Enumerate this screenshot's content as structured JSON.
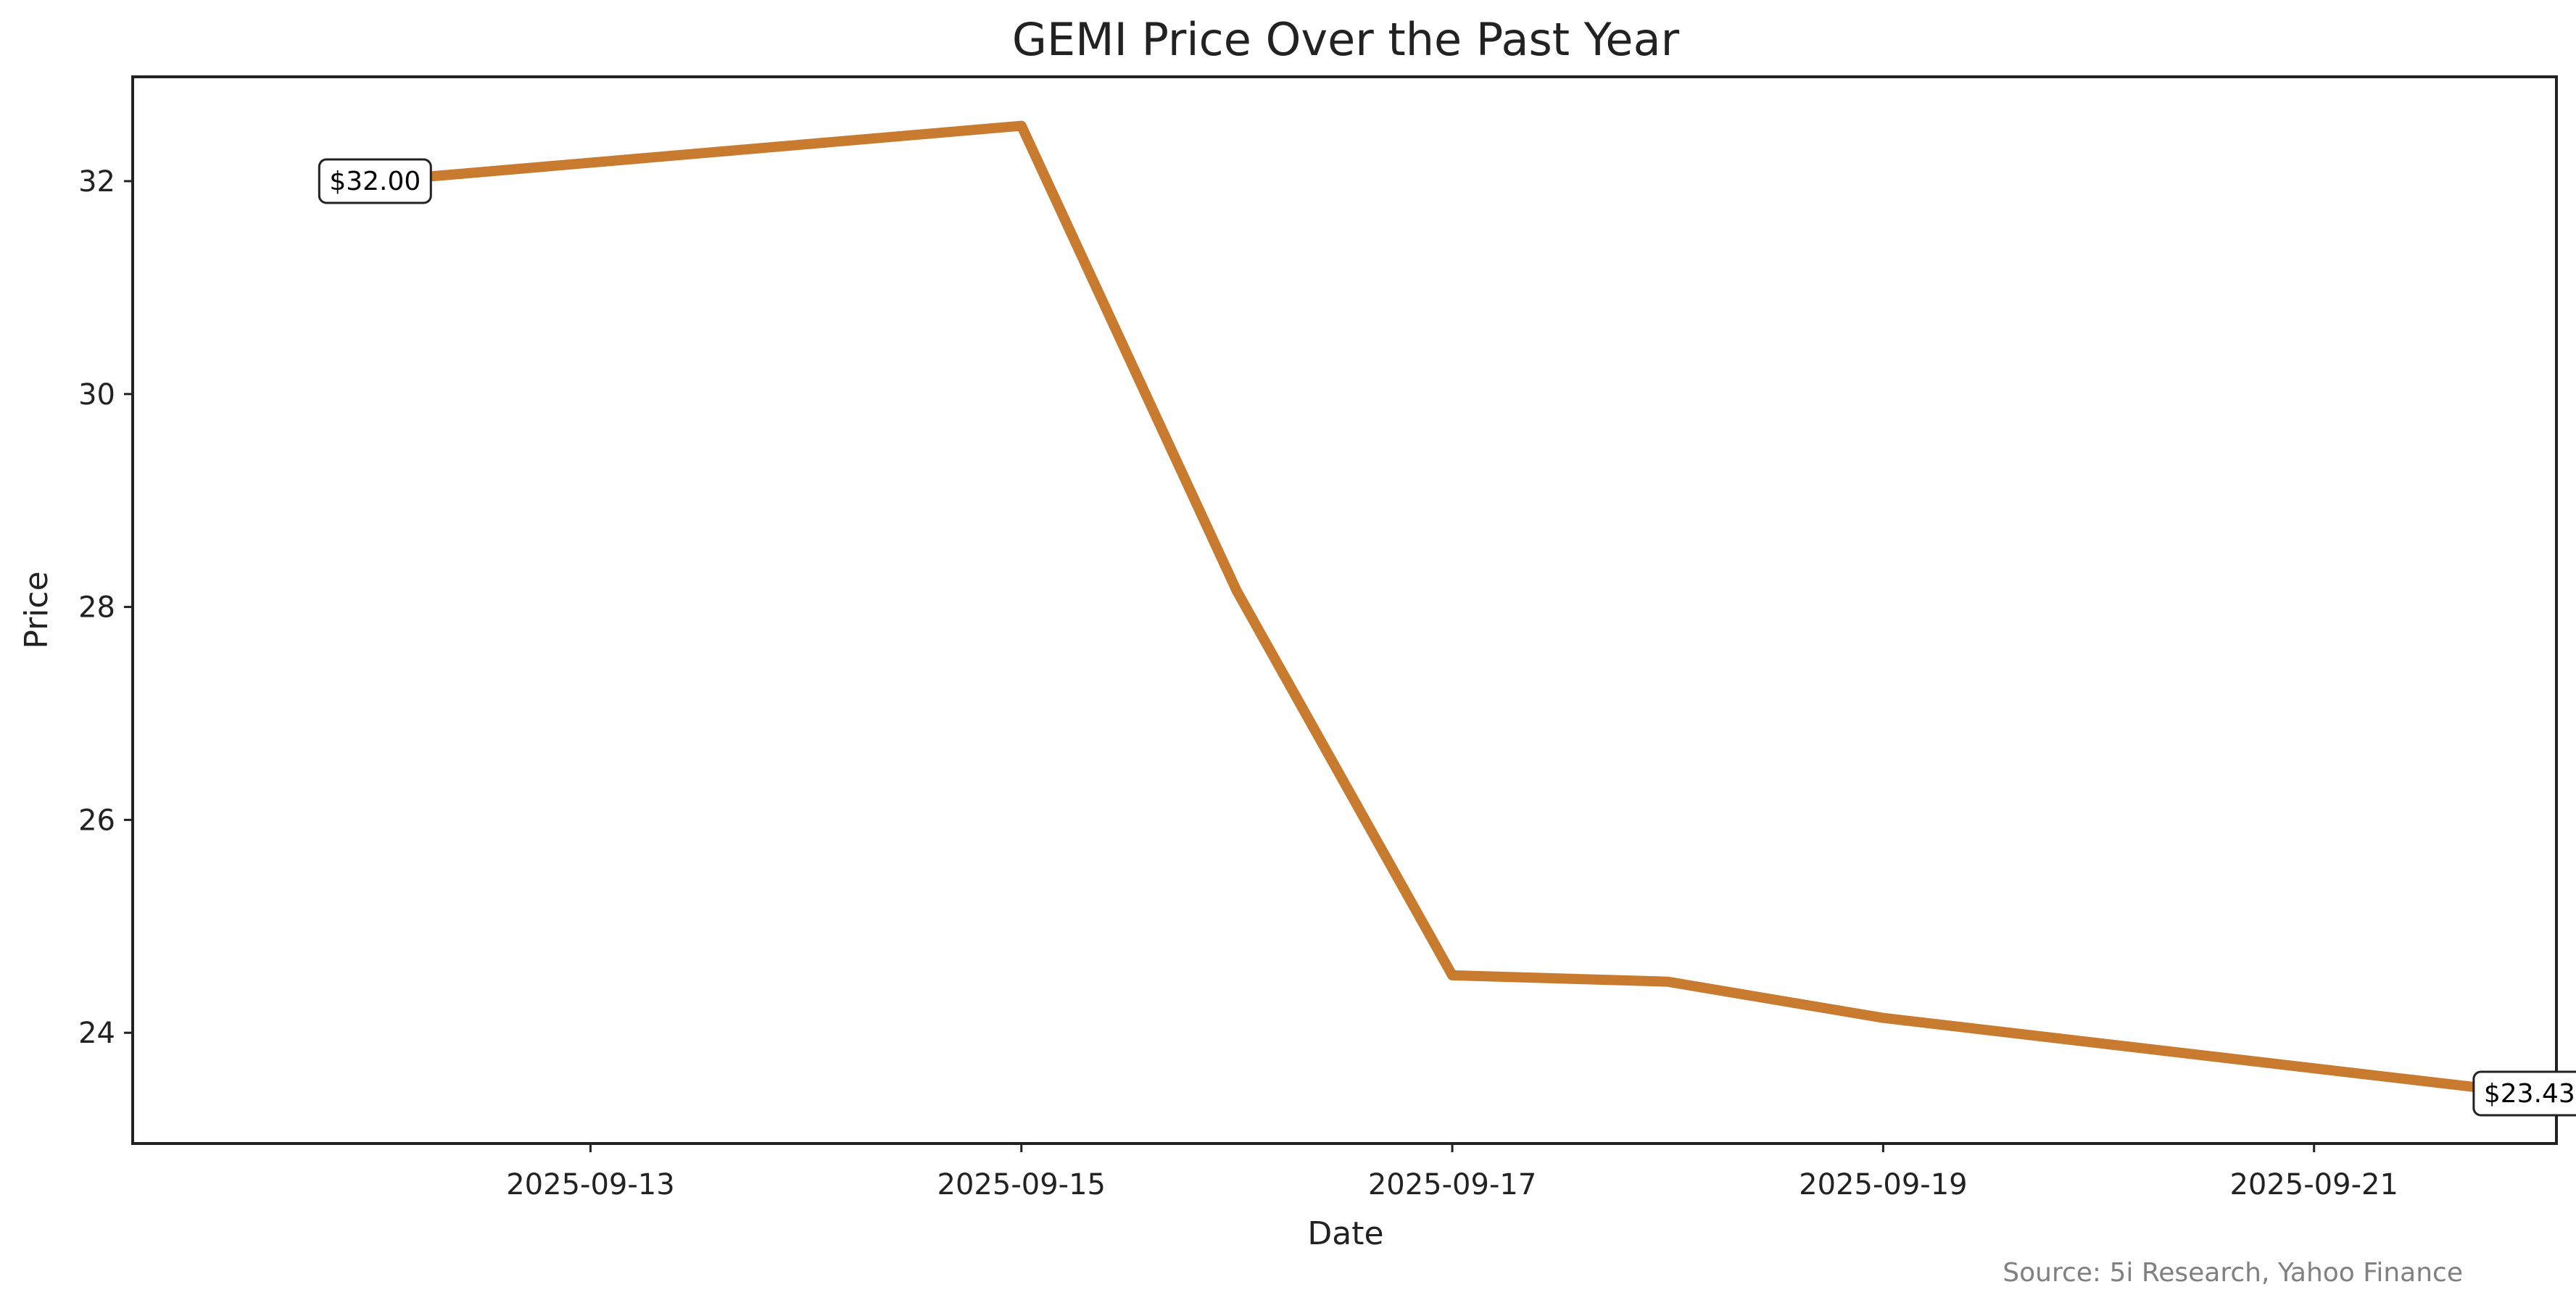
{
  "chart_data": {
    "type": "line",
    "title": "GEMI Price Over the Past Year",
    "xlabel": "Date",
    "ylabel": "Price",
    "source": "Source: 5i Research, Yahoo Finance",
    "x_type": "date",
    "xlim": [
      "2025-09-10T21:00",
      "2025-09-22T03:00"
    ],
    "ylim": [
      22.96,
      32.98
    ],
    "x_ticks": [
      "2025-09-13",
      "2025-09-15",
      "2025-09-17",
      "2025-09-19",
      "2025-09-21"
    ],
    "y_ticks": [
      24,
      26,
      28,
      30,
      32
    ],
    "grid": false,
    "legend": "none",
    "series": [
      {
        "color": "#C87A2F",
        "x": [
          "2025-09-12",
          "2025-09-15",
          "2025-09-16",
          "2025-09-17",
          "2025-09-18",
          "2025-09-19",
          "2025-09-22"
        ],
        "y": [
          32.0,
          32.52,
          28.15,
          24.54,
          24.48,
          24.14,
          23.43
        ]
      }
    ],
    "annotations": [
      {
        "x": "2025-09-12",
        "y": 32.0,
        "text": "$32.00"
      },
      {
        "x": "2025-09-22",
        "y": 23.43,
        "text": "$23.43"
      }
    ]
  }
}
